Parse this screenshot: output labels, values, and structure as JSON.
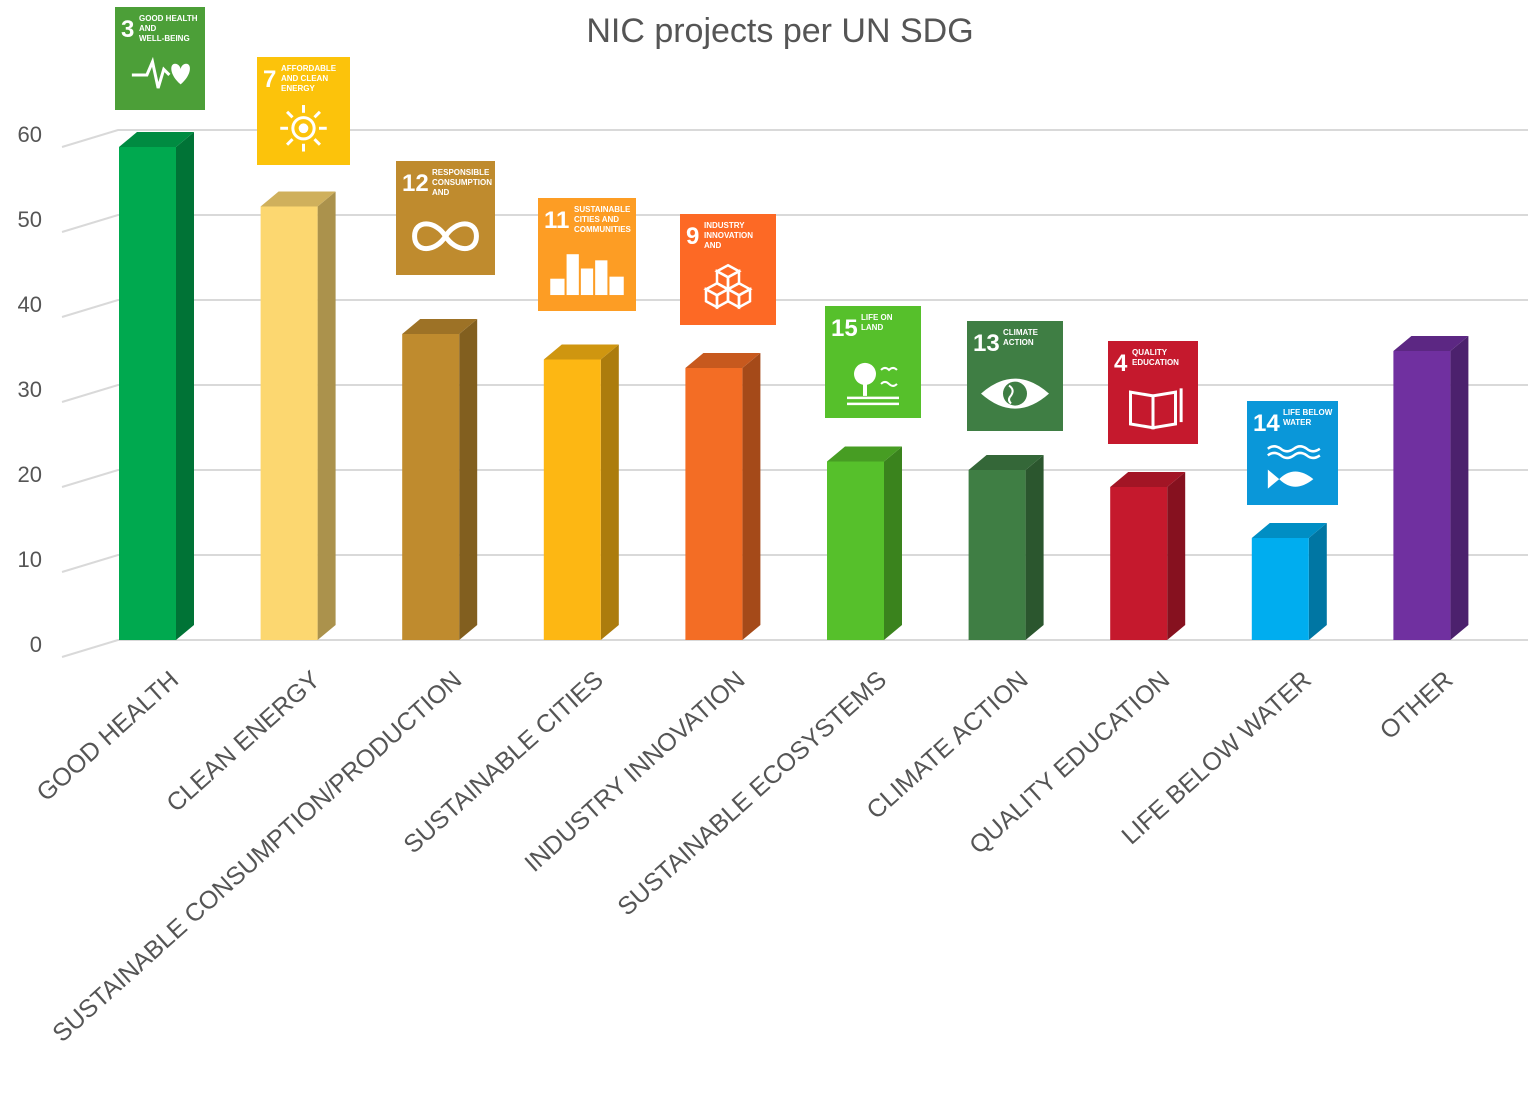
{
  "chart_data": {
    "type": "bar",
    "title": "NIC projects per UN SDG",
    "xlabel": "",
    "ylabel": "",
    "ylim": [
      0,
      60
    ],
    "yticks": [
      0,
      10,
      20,
      30,
      40,
      50,
      60
    ],
    "grid": true,
    "legend": "none",
    "categories": [
      "GOOD HEALTH",
      "CLEAN ENERGY",
      "SUSTAINABLE CONSUMPTION/PRODUCTION",
      "SUSTAINABLE CITIES",
      "INDUSTRY INNOVATION",
      "SUSTAINABLE ECOSYSTEMS",
      "CLIMATE  ACTION",
      "QUALITY EDUCATION",
      "LIFE BELOW WATER",
      "OTHER"
    ],
    "values": [
      58,
      51,
      36,
      33,
      32,
      21,
      20,
      18,
      12,
      34
    ],
    "colors": [
      "#00a94f",
      "#fcd770",
      "#bf8b2e",
      "#fdb713",
      "#f36d25",
      "#56c02b",
      "#3f7e44",
      "#c5192d",
      "#00adef",
      "#7030a0"
    ],
    "badges": [
      {
        "number": "3",
        "label": "GOOD HEALTH AND WELL-BEING",
        "color": "#4c9f38",
        "icon": "heartbeat-icon"
      },
      {
        "number": "7",
        "label": "AFFORDABLE AND CLEAN ENERGY",
        "color": "#fcc30b",
        "icon": "sun-icon"
      },
      {
        "number": "12",
        "label": "RESPONSIBLE CONSUMPTION AND PRODUCTION",
        "color": "#bf8b2e",
        "icon": "infinity-icon"
      },
      {
        "number": "11",
        "label": "SUSTAINABLE CITIES AND COMMUNITIES",
        "color": "#fd9d24",
        "icon": "buildings-icon"
      },
      {
        "number": "9",
        "label": "INDUSTRY INNOVATION AND INFRASTRUCTURE",
        "color": "#fd6925",
        "icon": "cubes-icon"
      },
      {
        "number": "15",
        "label": "LIFE ON LAND",
        "color": "#56c02b",
        "icon": "tree-icon"
      },
      {
        "number": "13",
        "label": "CLIMATE ACTION",
        "color": "#3f7e44",
        "icon": "eye-globe-icon"
      },
      {
        "number": "4",
        "label": "QUALITY EDUCATION",
        "color": "#c5192d",
        "icon": "book-icon"
      },
      {
        "number": "14",
        "label": "LIFE BELOW WATER",
        "color": "#0a97d9",
        "icon": "fish-icon"
      },
      null
    ]
  }
}
